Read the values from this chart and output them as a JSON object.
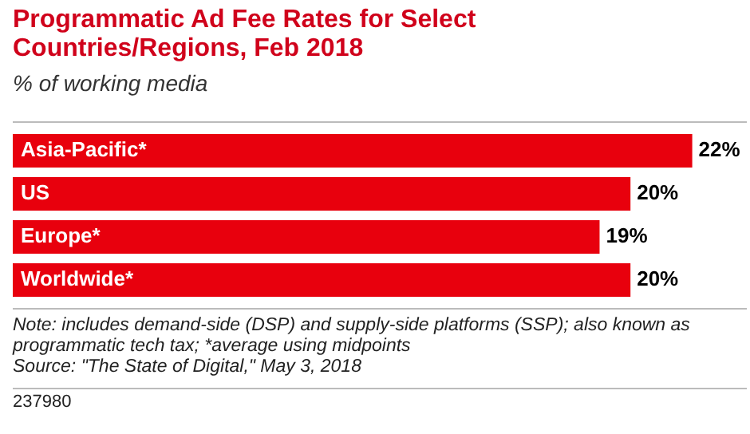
{
  "chart_data": {
    "type": "bar",
    "orientation": "horizontal",
    "title": "Programmatic Ad Fee Rates for Select Countries/Regions, Feb 2018",
    "subtitle": "% of working media",
    "categories": [
      "Asia-Pacific*",
      "US",
      "Europe*",
      "Worldwide*"
    ],
    "values": [
      22,
      20,
      19,
      20
    ],
    "value_labels": [
      "22%",
      "20%",
      "19%",
      "20%"
    ],
    "color": "#e8000d",
    "annotations": [
      "Note: includes demand-side (DSP) and supply-side platforms (SSP); also known as programmatic tech tax; *average using midpoints",
      "Source: \"The State of Digital,\" May 3, 2018",
      "237980"
    ]
  }
}
